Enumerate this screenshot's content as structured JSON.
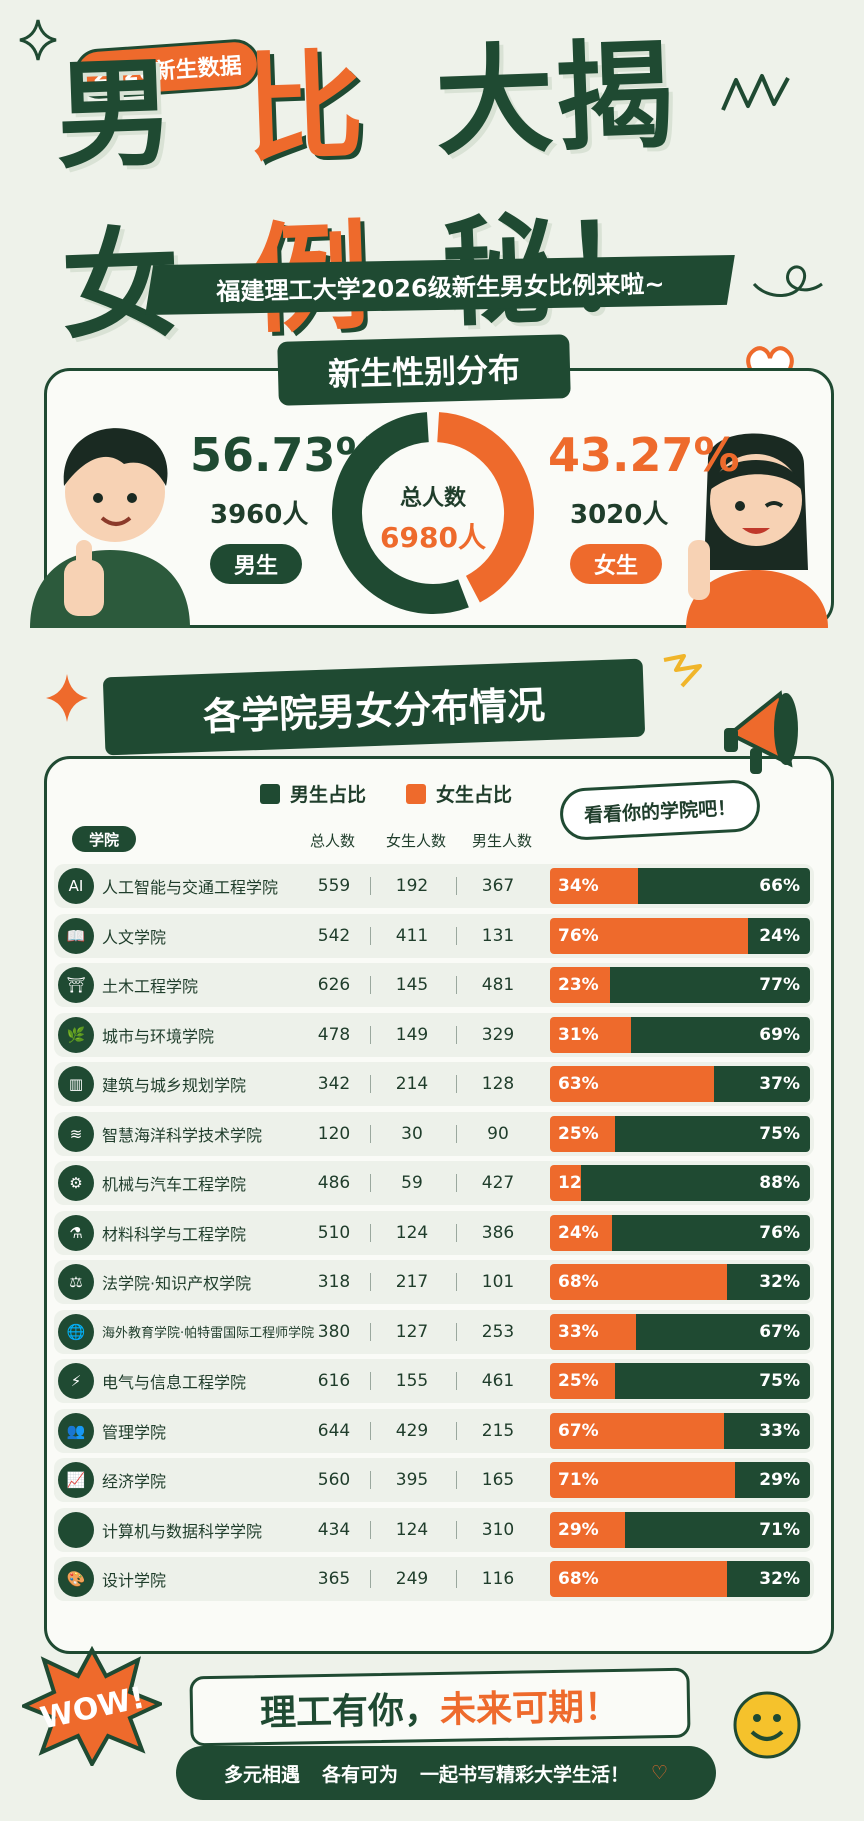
{
  "header": {
    "tag": "2026新生数据",
    "title_part1": "男女",
    "title_part2": "比例",
    "title_part3": "大揭秘！",
    "subtitle": "福建理工大学2026级新生男女比例来啦~"
  },
  "gender": {
    "section_title": "新生性别分布",
    "male_pct": "56.73%",
    "male_count": "3960人",
    "male_label": "男生",
    "female_pct": "43.27%",
    "female_count": "3020人",
    "female_label": "女生",
    "total_label": "总人数",
    "total_value": "6980人"
  },
  "colleges": {
    "section_title": "各学院男女分布情况",
    "legend_male": "男生占比",
    "legend_female": "女生占比",
    "bubble": "看看你的学院吧！",
    "headers": [
      "学院",
      "总人数",
      "女生人数",
      "男生人数"
    ]
  },
  "colors": {
    "male": "#1f4a32",
    "female": "#ee6a2c",
    "background": "#eef2ea"
  },
  "chart_data": {
    "type": "bar",
    "title": "各学院男女分布情况",
    "donut": {
      "type": "pie",
      "slices": [
        {
          "name": "男生",
          "value": 56.73,
          "count": 3960
        },
        {
          "name": "女生",
          "value": 43.27,
          "count": 3020
        }
      ],
      "total": 6980
    },
    "rows": [
      {
        "college": "人工智能与交通工程学院",
        "icon": "ai-chip-icon",
        "total": 559,
        "female": 192,
        "male": 367,
        "female_pct": "34%",
        "male_pct": "66%",
        "fp": 34
      },
      {
        "college": "人文学院",
        "icon": "book-icon",
        "total": 542,
        "female": 411,
        "male": 131,
        "female_pct": "76%",
        "male_pct": "24%",
        "fp": 76
      },
      {
        "college": "土木工程学院",
        "icon": "bridge-icon",
        "total": 626,
        "female": 145,
        "male": 481,
        "female_pct": "23%",
        "male_pct": "77%",
        "fp": 23
      },
      {
        "college": "城市与环境学院",
        "icon": "leaf-icon",
        "total": 478,
        "female": 149,
        "male": 329,
        "female_pct": "31%",
        "male_pct": "69%",
        "fp": 31
      },
      {
        "college": "建筑与城乡规划学院",
        "icon": "building-icon",
        "total": 342,
        "female": 214,
        "male": 128,
        "female_pct": "63%",
        "male_pct": "37%",
        "fp": 63
      },
      {
        "college": "智慧海洋科学技术学院",
        "icon": "wave-icon",
        "total": 120,
        "female": 30,
        "male": 90,
        "female_pct": "25%",
        "male_pct": "75%",
        "fp": 25
      },
      {
        "college": "机械与汽车工程学院",
        "icon": "gear-icon",
        "total": 486,
        "female": 59,
        "male": 427,
        "female_pct": "12%",
        "male_pct": "88%",
        "fp": 12
      },
      {
        "college": "材料科学与工程学院",
        "icon": "flask-icon",
        "total": 510,
        "female": 124,
        "male": 386,
        "female_pct": "24%",
        "male_pct": "76%",
        "fp": 24
      },
      {
        "college": "法学院·知识产权学院",
        "icon": "scale-icon",
        "total": 318,
        "female": 217,
        "male": 101,
        "female_pct": "68%",
        "male_pct": "32%",
        "fp": 68
      },
      {
        "college": "海外教育学院·帕特雷国际工程师学院",
        "icon": "globe-icon",
        "total": 380,
        "female": 127,
        "male": 253,
        "female_pct": "33%",
        "male_pct": "67%",
        "fp": 33
      },
      {
        "college": "电气与信息工程学院",
        "icon": "lightning-icon",
        "total": 616,
        "female": 155,
        "male": 461,
        "female_pct": "25%",
        "male_pct": "75%",
        "fp": 25
      },
      {
        "college": "管理学院",
        "icon": "people-icon",
        "total": 644,
        "female": 429,
        "male": 215,
        "female_pct": "67%",
        "male_pct": "33%",
        "fp": 67
      },
      {
        "college": "经济学院",
        "icon": "chart-icon",
        "total": 560,
        "female": 395,
        "male": 165,
        "female_pct": "71%",
        "male_pct": "29%",
        "fp": 71
      },
      {
        "college": "计算机与数据科学学院",
        "icon": "code-icon",
        "total": 434,
        "female": 124,
        "male": 310,
        "female_pct": "29%",
        "male_pct": "71%",
        "fp": 29
      },
      {
        "college": "设计学院",
        "icon": "palette-icon",
        "total": 365,
        "female": 249,
        "male": 116,
        "female_pct": "68%",
        "male_pct": "32%",
        "fp": 68
      }
    ]
  },
  "footer": {
    "slogan_part1": "理工有你，",
    "slogan_part2": "未来可期！",
    "wow": "WOW!",
    "items": [
      "多元相遇",
      "各有可为",
      "一起书写精彩大学生活！"
    ]
  }
}
